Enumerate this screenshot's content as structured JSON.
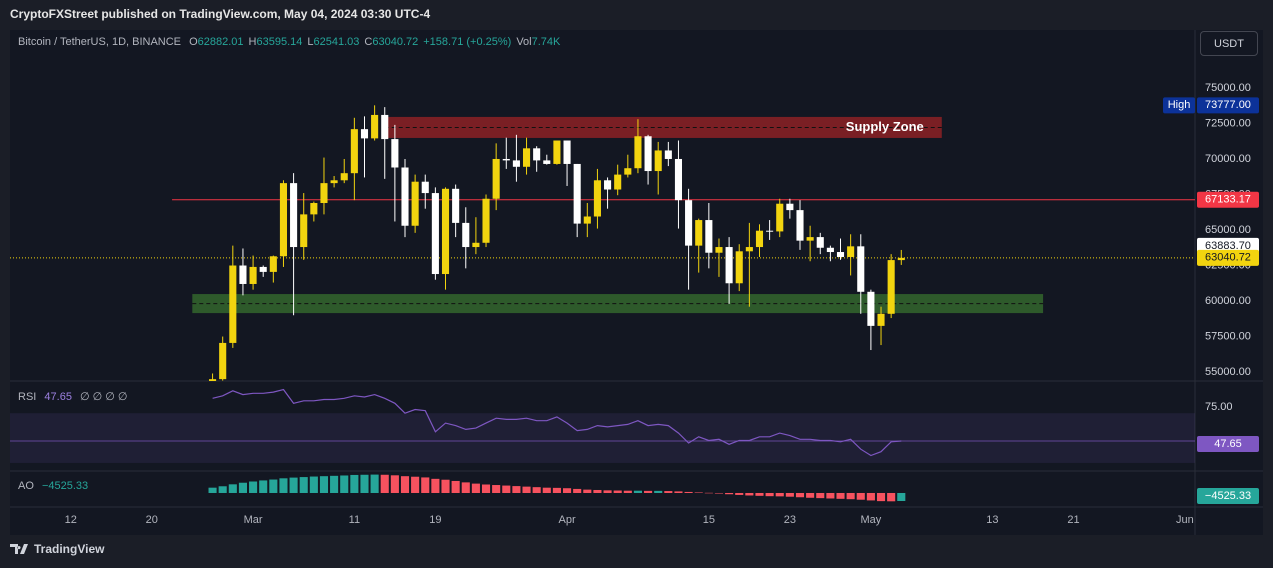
{
  "header": "CryptoFXStreet published on TradingView.com, May 04, 2024 03:30 UTC-4",
  "footer": "TradingView",
  "chart_data": {
    "type": "candlestick",
    "title": "Bitcoin / TetherUS, 1D, BINANCE",
    "currency": "USDT",
    "legend_prefixes": [
      "O",
      "H",
      "L",
      "C"
    ],
    "change": "+158.71 (+0.25%)",
    "volume": {
      "label": "Vol",
      "value": "7.74K"
    },
    "x": [
      "2024-02-26",
      "2024-02-27",
      "2024-02-28",
      "2024-02-29",
      "2024-03-01",
      "2024-03-02",
      "2024-03-03",
      "2024-03-04",
      "2024-03-05",
      "2024-03-06",
      "2024-03-07",
      "2024-03-08",
      "2024-03-09",
      "2024-03-10",
      "2024-03-11",
      "2024-03-12",
      "2024-03-13",
      "2024-03-14",
      "2024-03-15",
      "2024-03-16",
      "2024-03-17",
      "2024-03-18",
      "2024-03-19",
      "2024-03-20",
      "2024-03-21",
      "2024-03-22",
      "2024-03-23",
      "2024-03-24",
      "2024-03-25",
      "2024-03-26",
      "2024-03-27",
      "2024-03-28",
      "2024-03-29",
      "2024-03-30",
      "2024-03-31",
      "2024-04-01",
      "2024-04-02",
      "2024-04-03",
      "2024-04-04",
      "2024-04-05",
      "2024-04-06",
      "2024-04-07",
      "2024-04-08",
      "2024-04-09",
      "2024-04-10",
      "2024-04-11",
      "2024-04-12",
      "2024-04-13",
      "2024-04-14",
      "2024-04-15",
      "2024-04-16",
      "2024-04-17",
      "2024-04-18",
      "2024-04-19",
      "2024-04-20",
      "2024-04-21",
      "2024-04-22",
      "2024-04-23",
      "2024-04-24",
      "2024-04-25",
      "2024-04-26",
      "2024-04-27",
      "2024-04-28",
      "2024-04-29",
      "2024-04-30",
      "2024-05-01",
      "2024-05-02",
      "2024-05-03",
      "2024-05-04"
    ],
    "open": [
      51700,
      54500,
      57050,
      62500,
      61200,
      62400,
      62050,
      63150,
      68300,
      63800,
      66100,
      66900,
      68300,
      68500,
      69000,
      72100,
      71450,
      73100,
      71400,
      69400,
      65300,
      68400,
      67600,
      61900,
      67900,
      65500,
      63800,
      64100,
      67200,
      70000,
      69900,
      69450,
      70750,
      69900,
      69650,
      71300,
      69650,
      65450,
      65950,
      68500,
      67850,
      68900,
      69350,
      71600,
      69150,
      70600,
      70000,
      67100,
      63900,
      65700,
      63400,
      63800,
      61250,
      63500,
      63800,
      64950,
      64900,
      66850,
      66400,
      64250,
      64500,
      63750,
      63450,
      63100,
      63850,
      60650,
      58250,
      59100,
      62882.01
    ],
    "high": [
      54900,
      57500,
      63900,
      63700,
      63200,
      62500,
      63200,
      68500,
      69000,
      67600,
      67000,
      70100,
      68800,
      70000,
      72900,
      73000,
      73777,
      73650,
      72400,
      70000,
      68900,
      68900,
      68000,
      68000,
      68200,
      66600,
      65900,
      67500,
      71100,
      71500,
      71700,
      71500,
      70900,
      70300,
      71300,
      71300,
      69650,
      66900,
      69300,
      68700,
      69600,
      70300,
      72800,
      71700,
      71200,
      71200,
      71300,
      67900,
      65800,
      66900,
      64400,
      64500,
      64000,
      65500,
      65400,
      65700,
      67200,
      67200,
      67100,
      65300,
      64800,
      63900,
      64400,
      64700,
      64700,
      60800,
      59600,
      63300,
      63595.14
    ],
    "low": [
      50900,
      54400,
      56700,
      60400,
      60800,
      61700,
      61300,
      62400,
      59000,
      62900,
      65600,
      66100,
      68000,
      68300,
      67100,
      68700,
      71300,
      68600,
      65600,
      64500,
      64800,
      66500,
      61500,
      60800,
      64500,
      62300,
      63300,
      63800,
      66400,
      69300,
      68400,
      68900,
      69100,
      69600,
      69600,
      68100,
      64500,
      64500,
      65100,
      66500,
      67450,
      68700,
      69000,
      68200,
      67500,
      69500,
      65100,
      60800,
      62000,
      62300,
      61700,
      59800,
      60700,
      59600,
      63100,
      64300,
      64500,
      65800,
      63600,
      62800,
      63300,
      62800,
      62900,
      61800,
      59100,
      56550,
      56900,
      58800,
      62541.03
    ],
    "close": [
      54500,
      57050,
      62500,
      61200,
      62400,
      62050,
      63150,
      68300,
      63800,
      66100,
      66900,
      68300,
      68500,
      69000,
      72100,
      71450,
      73100,
      71400,
      69400,
      65300,
      68400,
      67600,
      61900,
      67900,
      65500,
      63800,
      64100,
      67200,
      70000,
      69900,
      69450,
      70750,
      69900,
      69650,
      71300,
      69650,
      65450,
      65950,
      68500,
      67850,
      68900,
      69350,
      71600,
      69150,
      70600,
      70000,
      67100,
      63900,
      65700,
      63400,
      63800,
      61250,
      63500,
      63800,
      64950,
      64900,
      66850,
      66400,
      64250,
      64500,
      63750,
      63450,
      63100,
      63850,
      60650,
      58250,
      59100,
      62882.01,
      63040.72
    ],
    "up_color": "#f2d40f",
    "down_color": "#ffffff",
    "xlim": [
      "2024-02-06",
      "2024-06-02"
    ],
    "xticks": [
      {
        "value": "2024-02-12",
        "label": "12"
      },
      {
        "value": "2024-02-20",
        "label": "20"
      },
      {
        "value": "2024-03-01",
        "label": "Mar"
      },
      {
        "value": "2024-03-11",
        "label": "11"
      },
      {
        "value": "2024-03-19",
        "label": "19"
      },
      {
        "value": "2024-04-01",
        "label": "Apr"
      },
      {
        "value": "2024-04-15",
        "label": "15"
      },
      {
        "value": "2024-04-23",
        "label": "23"
      },
      {
        "value": "2024-05-01",
        "label": "May"
      },
      {
        "value": "2024-05-13",
        "label": "13"
      },
      {
        "value": "2024-05-21",
        "label": "21"
      },
      {
        "value": "2024-06-01",
        "label": "Jun"
      }
    ],
    "ylim": [
      54440,
      77320
    ],
    "yticks": [
      {
        "value": 55000,
        "label": "55000.00"
      },
      {
        "value": 57500,
        "label": "57500.00"
      },
      {
        "value": 60000,
        "label": "60000.00"
      },
      {
        "value": 62500,
        "label": "62500.00"
      },
      {
        "value": 65000,
        "label": "65000.00"
      },
      {
        "value": 67500,
        "label": "67500.00"
      },
      {
        "value": 70000,
        "label": "70000.00"
      },
      {
        "value": 72500,
        "label": "72500.00"
      },
      {
        "value": 75000,
        "label": "75000.00"
      }
    ],
    "grid": false,
    "high_marker": {
      "label": "High",
      "value": {
        "value": 73777,
        "label": "73777.00"
      },
      "color": "#0c3299"
    },
    "price_lines": [
      {
        "value": 67133.17,
        "start": "2024-02-22",
        "color": "#f23645",
        "text_color": "#ffffff",
        "style": "solid"
      },
      {
        "value": {
          "value": 63883.7,
          "label": "63883.70"
        },
        "color": "#ffffff",
        "text_color": "#131722",
        "style": "none"
      },
      {
        "value": 63040.72,
        "color": "#f2d40f",
        "text_color": "#131722",
        "style": "dotted"
      }
    ],
    "zones": [
      {
        "label": "Supply Zone",
        "from": 71480,
        "to": 72960,
        "start": "2024-03-14",
        "end": "2024-05-08",
        "color": "#7a1f24"
      },
      {
        "from": 59150,
        "to": 60490,
        "start": "2024-02-24",
        "end": "2024-05-18",
        "color": "#2e5a2b"
      }
    ],
    "rsi": {
      "title": "RSI",
      "params": "∅ ∅ ∅ ∅",
      "color": "#7e57c2",
      "values": [
        82,
        84,
        88,
        85,
        86,
        86,
        87,
        89,
        78,
        80,
        80,
        81,
        81,
        82,
        84,
        83,
        85,
        82,
        78,
        70,
        73,
        72,
        55,
        62,
        60,
        57,
        58,
        62,
        66,
        65,
        65,
        66,
        64,
        64,
        67,
        62,
        56,
        57,
        60,
        59,
        60,
        61,
        64,
        60,
        61,
        60,
        54,
        46,
        51,
        48,
        49,
        45,
        48,
        48,
        51,
        51,
        54,
        52,
        49,
        49,
        48,
        48,
        47,
        49,
        41,
        36,
        39,
        47,
        47.65
      ],
      "ylim": [
        24.3,
        94.3
      ],
      "yticks": [
        {
          "value": 75,
          "label": "75.00"
        }
      ],
      "band": [
        30,
        70
      ]
    },
    "ao": {
      "title": "AO",
      "last_label": "−4525.33",
      "up_color": "#26a69a",
      "down_color": "#f7525f",
      "values": [
        3000,
        3800,
        4900,
        5800,
        6500,
        7100,
        7600,
        8300,
        8700,
        9000,
        9300,
        9500,
        9700,
        9900,
        10200,
        10300,
        10400,
        10300,
        10000,
        9500,
        9200,
        8800,
        8000,
        7500,
        6800,
        6000,
        5300,
        4800,
        4500,
        4200,
        3900,
        3600,
        3300,
        3000,
        2900,
        2700,
        2300,
        1900,
        1700,
        1500,
        1400,
        1300,
        1300,
        1200,
        1200,
        1100,
        900,
        600,
        300,
        100,
        -300,
        -700,
        -1100,
        -1400,
        -1600,
        -1800,
        -1900,
        -2100,
        -2400,
        -2700,
        -2900,
        -3100,
        -3300,
        -3500,
        -3800,
        -4200,
        -4600,
        -4700,
        -4525.33
      ],
      "ylim": [
        -7350,
        11300
      ]
    }
  }
}
